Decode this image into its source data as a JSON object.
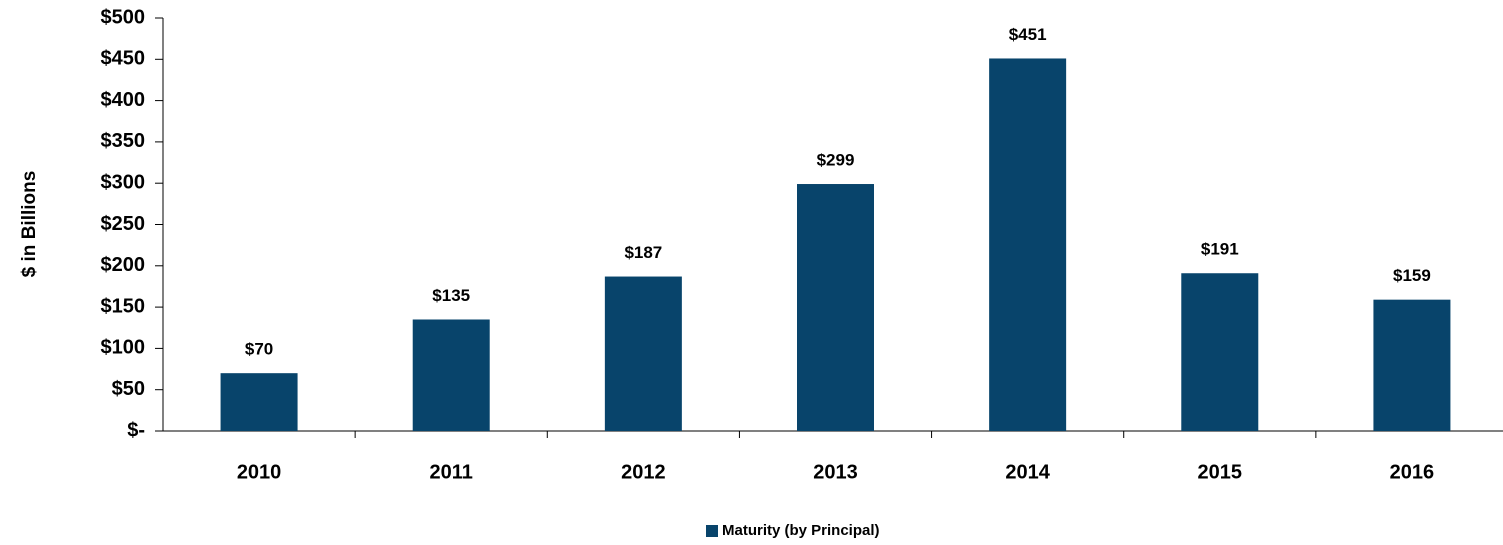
{
  "chart_data": {
    "type": "bar",
    "y_label": "$ in Billions",
    "categories": [
      "2010",
      "2011",
      "2012",
      "2013",
      "2014",
      "2015",
      "2016"
    ],
    "series": [
      {
        "name": "Maturity (by Principal)",
        "color": "#08446b",
        "values": [
          70,
          135,
          187,
          299,
          451,
          191,
          159
        ],
        "value_labels": [
          "$70",
          "$135",
          "$187",
          "$299",
          "$451",
          "$191",
          "$159"
        ]
      }
    ],
    "ylim": [
      0,
      500
    ],
    "yticks": [
      {
        "value": 0,
        "label": "$-"
      },
      {
        "value": 50,
        "label": "$50"
      },
      {
        "value": 100,
        "label": "$100"
      },
      {
        "value": 150,
        "label": "$150"
      },
      {
        "value": 200,
        "label": "$200"
      },
      {
        "value": 250,
        "label": "$250"
      },
      {
        "value": 300,
        "label": "$300"
      },
      {
        "value": 350,
        "label": "$350"
      },
      {
        "value": 400,
        "label": "$400"
      },
      {
        "value": 450,
        "label": "$450"
      },
      {
        "value": 500,
        "label": "$500"
      }
    ],
    "grid": false,
    "legend": "bottom"
  }
}
